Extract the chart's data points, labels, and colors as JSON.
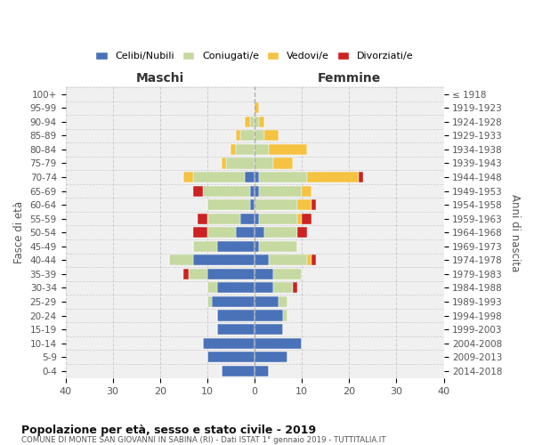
{
  "age_groups": [
    "0-4",
    "5-9",
    "10-14",
    "15-19",
    "20-24",
    "25-29",
    "30-34",
    "35-39",
    "40-44",
    "45-49",
    "50-54",
    "55-59",
    "60-64",
    "65-69",
    "70-74",
    "75-79",
    "80-84",
    "85-89",
    "90-94",
    "95-99",
    "100+"
  ],
  "birth_years": [
    "2014-2018",
    "2009-2013",
    "2004-2008",
    "1999-2003",
    "1994-1998",
    "1989-1993",
    "1984-1988",
    "1979-1983",
    "1974-1978",
    "1969-1973",
    "1964-1968",
    "1959-1963",
    "1954-1958",
    "1949-1953",
    "1944-1948",
    "1939-1943",
    "1934-1938",
    "1929-1933",
    "1924-1928",
    "1919-1923",
    "≤ 1918"
  ],
  "maschi": {
    "celibi": [
      7,
      10,
      11,
      8,
      8,
      9,
      8,
      10,
      13,
      8,
      4,
      3,
      1,
      1,
      2,
      0,
      0,
      0,
      0,
      0,
      0
    ],
    "coniugati": [
      0,
      0,
      0,
      0,
      0,
      1,
      2,
      4,
      5,
      5,
      6,
      7,
      9,
      10,
      11,
      6,
      4,
      3,
      1,
      0,
      0
    ],
    "vedovi": [
      0,
      0,
      0,
      0,
      0,
      0,
      0,
      0,
      0,
      0,
      0,
      0,
      0,
      0,
      2,
      1,
      1,
      1,
      1,
      0,
      0
    ],
    "divorziati": [
      0,
      0,
      0,
      0,
      0,
      0,
      0,
      1,
      0,
      0,
      3,
      2,
      0,
      2,
      0,
      0,
      0,
      0,
      0,
      0,
      0
    ]
  },
  "femmine": {
    "nubili": [
      3,
      7,
      10,
      6,
      6,
      5,
      4,
      4,
      3,
      1,
      2,
      1,
      0,
      1,
      1,
      0,
      0,
      0,
      0,
      0,
      0
    ],
    "coniugate": [
      0,
      0,
      0,
      0,
      1,
      2,
      4,
      6,
      8,
      8,
      7,
      8,
      9,
      9,
      10,
      4,
      3,
      2,
      1,
      0,
      0
    ],
    "vedove": [
      0,
      0,
      0,
      0,
      0,
      0,
      0,
      0,
      1,
      0,
      0,
      1,
      3,
      2,
      11,
      4,
      8,
      3,
      1,
      1,
      0
    ],
    "divorziate": [
      0,
      0,
      0,
      0,
      0,
      0,
      1,
      0,
      1,
      0,
      2,
      2,
      1,
      0,
      1,
      0,
      0,
      0,
      0,
      0,
      0
    ]
  },
  "colors": {
    "celibi": "#4a72b8",
    "coniugati": "#c5d9a0",
    "vedovi": "#f5c242",
    "divorziati": "#cc2222"
  },
  "title": "Popolazione per età, sesso e stato civile - 2019",
  "subtitle": "COMUNE DI MONTE SAN GIOVANNI IN SABINA (RI) - Dati ISTAT 1° gennaio 2019 - TUTTITALIA.IT",
  "xlabel_left": "Maschi",
  "xlabel_right": "Femmine",
  "ylabel_left": "Fasce di età",
  "ylabel_right": "Anni di nascita",
  "xlim": 40,
  "legend_labels": [
    "Celibi/Nubili",
    "Coniugati/e",
    "Vedovi/e",
    "Divorziati/e"
  ],
  "bg_color": "#f0f0f0",
  "grid_color": "#cccccc"
}
